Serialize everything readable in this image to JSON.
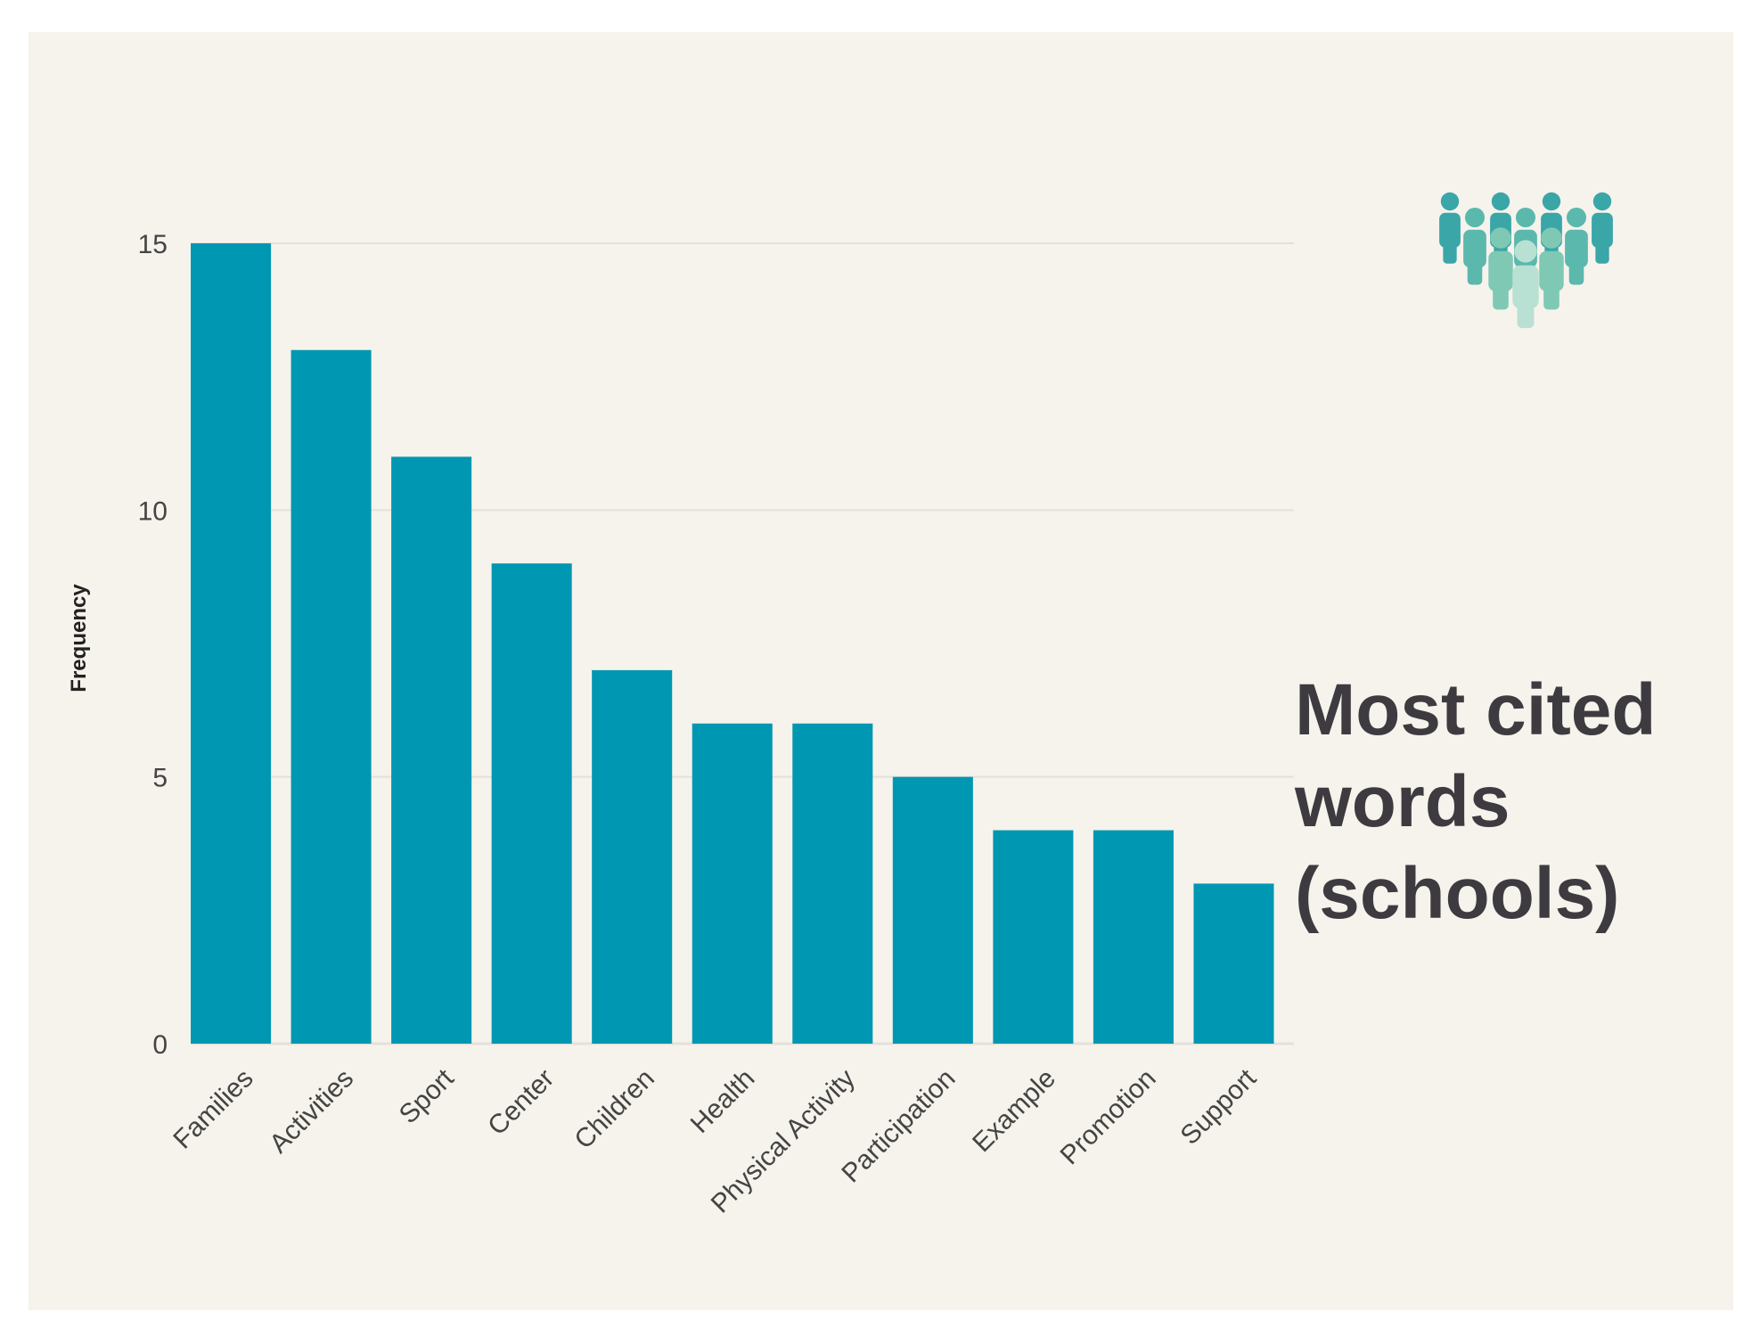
{
  "chart_data": {
    "type": "bar",
    "title": "Most cited words (schools)",
    "title_lines": [
      "Most cited",
      "words",
      "(schools)"
    ],
    "xlabel": "",
    "ylabel": "Frequency",
    "ylim": [
      0,
      15
    ],
    "yticks": [
      0,
      5,
      10,
      15
    ],
    "grid": true,
    "categories": [
      "Families",
      "Activities",
      "Sport",
      "Center",
      "Children",
      "Health",
      "Physical Activity",
      "Participation",
      "Example",
      "Promotion",
      "Support"
    ],
    "values": [
      15,
      13,
      11,
      9,
      7,
      6,
      6,
      5,
      4,
      4,
      3
    ],
    "bar_color": "#0097b2",
    "grid_color": "#e4e1da",
    "background_color": "#f6f3ec"
  },
  "decoration": {
    "icon": "people-group-icon",
    "icon_colors": [
      "#3aa6a8",
      "#5bb8ad",
      "#7fc9b4",
      "#b9e1d3"
    ]
  }
}
